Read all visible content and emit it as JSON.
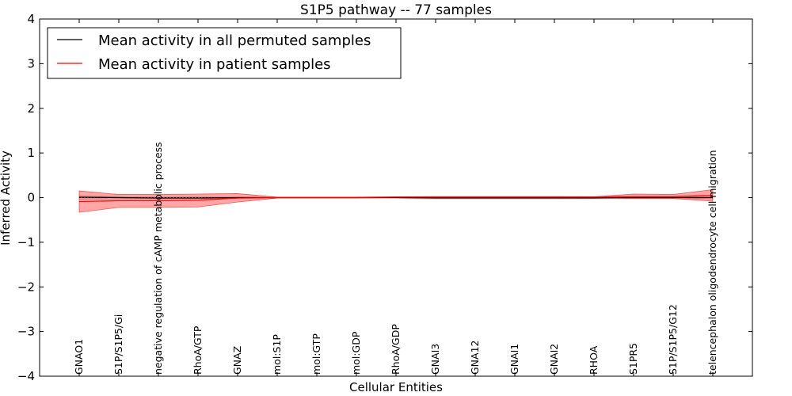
{
  "chart_data": {
    "type": "line",
    "title": "S1P5 pathway -- 77 samples",
    "xlabel": "Cellular Entities",
    "ylabel": "Inferred Activity",
    "ylim": [
      -4,
      4
    ],
    "yticks": [
      4,
      3,
      2,
      1,
      0,
      -1,
      -2,
      -3,
      -4
    ],
    "ytick_labels": [
      "4",
      "3",
      "2",
      "1",
      "0",
      "−1",
      "−2",
      "−3",
      "−4"
    ],
    "categories": [
      "GNAO1",
      "S1P/S1P5/Gi",
      "negative regulation of cAMP metabolic process",
      "RhoA/GTP",
      "GNAZ",
      "mol:S1P",
      "mol:GTP",
      "mol:GDP",
      "RhoA/GDP",
      "GNAI3",
      "GNA12",
      "GNAI1",
      "GNAI2",
      "RHOA",
      "S1PR5",
      "S1P/S1P5/G12",
      "telencephalon oligodendrocyte cell migration"
    ],
    "legend": {
      "position": "top-left",
      "entries": [
        {
          "label": "Mean activity in all permuted samples",
          "color": "#000000"
        },
        {
          "label": "Mean activity in patient samples",
          "color": "#ff0000"
        }
      ]
    },
    "series": [
      {
        "name": "Mean activity in all permuted samples",
        "color": "#000000",
        "values": [
          0.01,
          0.0,
          -0.01,
          -0.01,
          0.0,
          0.0,
          0.0,
          0.0,
          0.0,
          -0.01,
          -0.01,
          -0.01,
          -0.01,
          -0.01,
          0.0,
          0.0,
          0.0
        ],
        "band_low": [
          -0.05,
          -0.03,
          -0.03,
          -0.03,
          -0.02,
          -0.01,
          -0.01,
          -0.01,
          -0.02,
          -0.04,
          -0.04,
          -0.04,
          -0.04,
          -0.03,
          -0.03,
          -0.03,
          -0.03
        ],
        "band_high": [
          0.05,
          0.03,
          0.03,
          0.03,
          0.02,
          0.01,
          0.01,
          0.01,
          0.02,
          0.04,
          0.04,
          0.04,
          0.04,
          0.03,
          0.03,
          0.03,
          0.03
        ],
        "band_color": "#c8c8c8"
      },
      {
        "name": "Mean activity in patient samples",
        "color": "#ff0000",
        "values": [
          -0.09,
          -0.07,
          -0.07,
          -0.06,
          -0.01,
          0.0,
          0.0,
          0.0,
          0.01,
          0.01,
          0.01,
          0.01,
          0.01,
          0.01,
          0.02,
          0.02,
          0.05
        ],
        "band_low": [
          -0.33,
          -0.22,
          -0.22,
          -0.21,
          -0.1,
          -0.01,
          -0.01,
          -0.01,
          0.0,
          0.0,
          0.0,
          0.0,
          0.0,
          0.0,
          -0.02,
          -0.02,
          -0.08
        ],
        "band_high": [
          0.15,
          0.07,
          0.07,
          0.08,
          0.09,
          0.01,
          0.01,
          0.01,
          0.02,
          0.02,
          0.02,
          0.02,
          0.02,
          0.02,
          0.08,
          0.07,
          0.18
        ],
        "band_color": "#ff0000"
      }
    ],
    "dashed_zero_line": true
  }
}
